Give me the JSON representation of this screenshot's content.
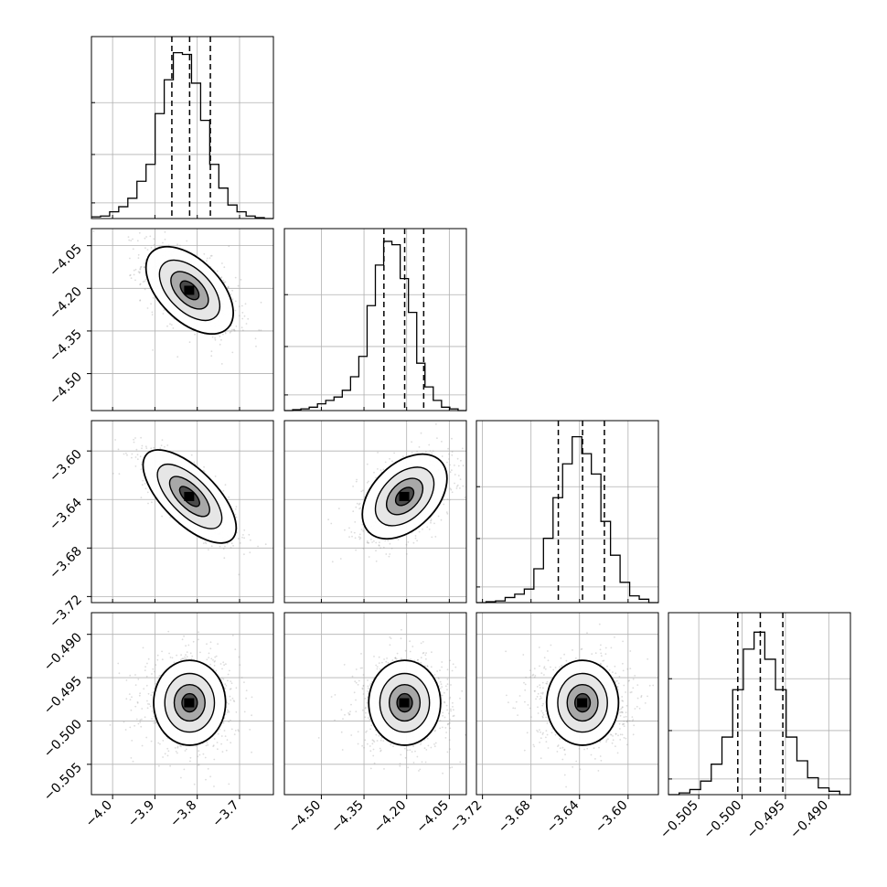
{
  "chart_data": {
    "type": "corner",
    "grid": true,
    "parameters": [
      {
        "range": [
          -4.05,
          -3.62
        ],
        "ticks": [
          -4.0,
          -3.9,
          -3.8,
          -3.7
        ],
        "tick_labels": [
          "−4.0",
          "−3.9",
          "−3.8",
          "−3.7"
        ],
        "quantiles": [
          -3.86,
          -3.818,
          -3.769
        ],
        "hist_ticks": [
          0.08,
          0.36,
          0.66
        ],
        "hist": [
          0.01,
          0.015,
          0.04,
          0.07,
          0.12,
          0.22,
          0.32,
          0.62,
          0.82,
          0.98,
          0.97,
          0.8,
          0.58,
          0.32,
          0.18,
          0.08,
          0.04,
          0.015,
          0.005,
          0.0
        ]
      },
      {
        "range": [
          -4.63,
          -3.99
        ],
        "ticks": [
          -4.5,
          -4.35,
          -4.2,
          -4.05
        ],
        "tick_labels": [
          "−4.50",
          "−4.35",
          "−4.20",
          "−4.05"
        ],
        "quantiles": [
          -4.28,
          -4.207,
          -4.14
        ],
        "hist_ticks": [
          0.08,
          0.36,
          0.66
        ],
        "hist": [
          0.0,
          0.005,
          0.01,
          0.02,
          0.04,
          0.06,
          0.08,
          0.12,
          0.2,
          0.32,
          0.62,
          0.86,
          1.0,
          0.98,
          0.78,
          0.58,
          0.28,
          0.14,
          0.06,
          0.02,
          0.01,
          0.0
        ]
      },
      {
        "range": [
          -3.725,
          -3.575
        ],
        "ticks": [
          -3.72,
          -3.68,
          -3.64,
          -3.6
        ],
        "tick_labels": [
          "−3.72",
          "−3.68",
          "−3.64",
          "−3.60"
        ],
        "quantiles": [
          -3.6575,
          -3.6375,
          -3.6195
        ],
        "hist_ticks": [
          0.08,
          0.36,
          0.66
        ],
        "hist": [
          0.0,
          0.005,
          0.01,
          0.03,
          0.05,
          0.08,
          0.2,
          0.38,
          0.62,
          0.82,
          0.98,
          0.88,
          0.76,
          0.48,
          0.28,
          0.12,
          0.04,
          0.02,
          0.0
        ]
      },
      {
        "range": [
          -0.5085,
          -0.4875
        ],
        "ticks": [
          -0.505,
          -0.5,
          -0.495,
          -0.49
        ],
        "tick_labels": [
          "−0.505",
          "−0.500",
          "−0.495",
          "−0.490"
        ],
        "quantiles": [
          -0.5005,
          -0.4979,
          -0.4953
        ],
        "hist_ticks": [
          0.08,
          0.36,
          0.66
        ],
        "hist": [
          0.0,
          0.01,
          0.03,
          0.08,
          0.18,
          0.34,
          0.62,
          0.86,
          0.96,
          0.8,
          0.62,
          0.34,
          0.2,
          0.1,
          0.04,
          0.02,
          0.0
        ]
      }
    ],
    "pairs": [
      {
        "row": 1,
        "col": 0,
        "mean": [
          -3.818,
          -4.207
        ],
        "corr": -0.55
      },
      {
        "row": 2,
        "col": 0,
        "mean": [
          -3.818,
          -3.6375
        ],
        "corr": -0.75
      },
      {
        "row": 2,
        "col": 1,
        "mean": [
          -4.207,
          -3.6375
        ],
        "corr": 0.45
      },
      {
        "row": 3,
        "col": 0,
        "mean": [
          -3.818,
          -0.4979
        ],
        "corr": 0.0
      },
      {
        "row": 3,
        "col": 1,
        "mean": [
          -4.207,
          -0.4979
        ],
        "corr": 0.0
      },
      {
        "row": 3,
        "col": 2,
        "mean": [
          -3.6375,
          -0.4979
        ],
        "corr": 0.0
      }
    ]
  }
}
